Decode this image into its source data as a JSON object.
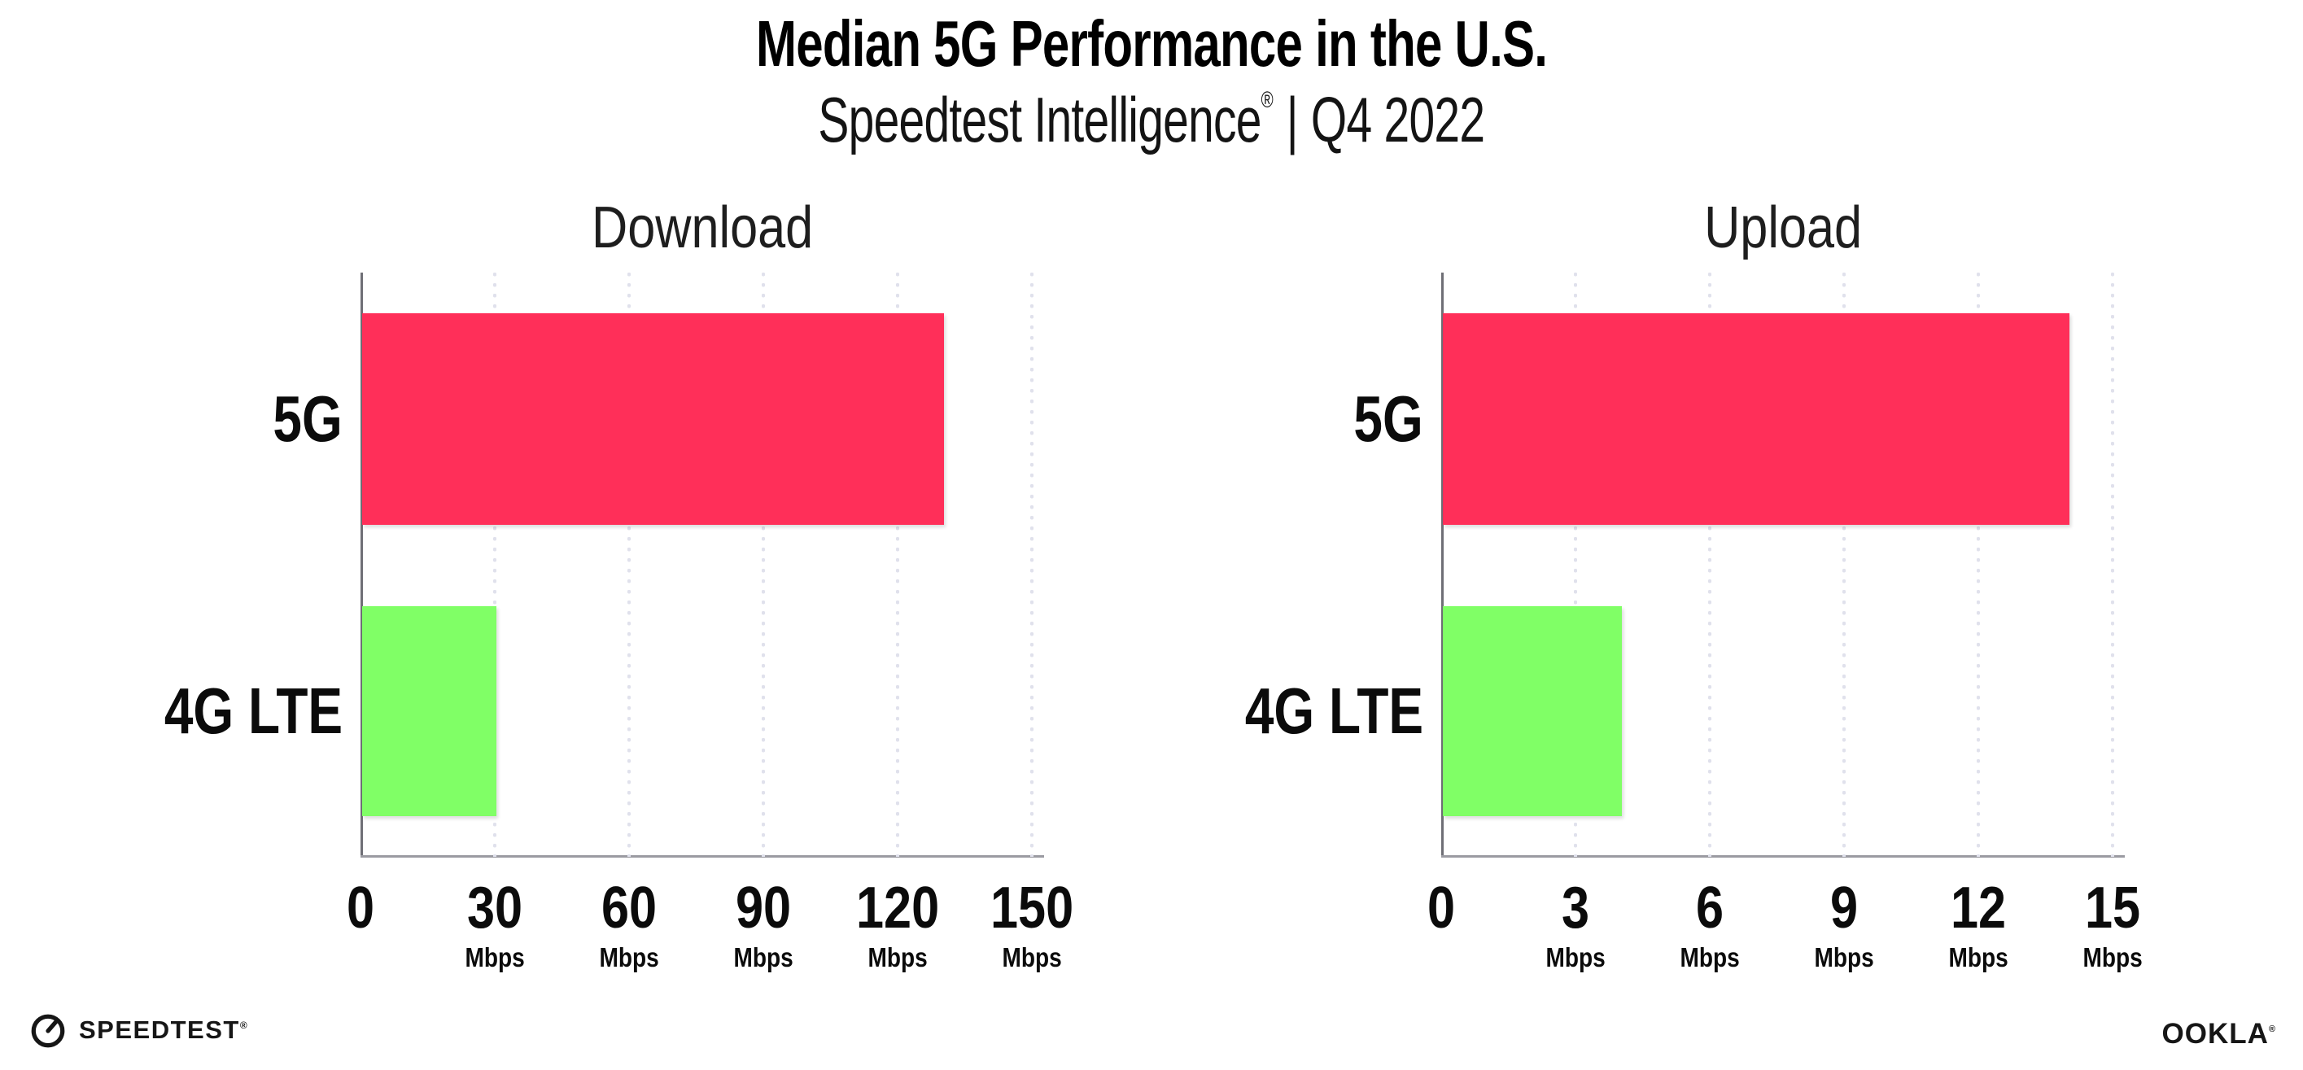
{
  "header": {
    "title": "Median 5G Performance in the U.S.",
    "subtitle_brand": "Speedtest Intelligence",
    "subtitle_registered_mark": "®",
    "subtitle_separator": "|",
    "subtitle_period": "Q4 2022"
  },
  "colors": {
    "bar_5g_pink": "#ff2f59",
    "bar_4g_green": "#80ff66",
    "axis_gray": "#9b9ba2",
    "grid_dot_gray": "#e0e1ec",
    "text_black": "#0b0b0b"
  },
  "chart_data": [
    {
      "type": "bar",
      "orientation": "horizontal",
      "title": "Download",
      "categories": [
        "5G",
        "4G LTE"
      ],
      "values": [
        130,
        30
      ],
      "value_unit": "Mbps",
      "xlim": [
        0,
        150
      ],
      "ticks": [
        0,
        30,
        60,
        90,
        120,
        150
      ],
      "tick_unit": "Mbps",
      "bar_colors": [
        "#ff2f59",
        "#80ff66"
      ],
      "grid": "dotted-vertical",
      "legend": "none"
    },
    {
      "type": "bar",
      "orientation": "horizontal",
      "title": "Upload",
      "categories": [
        "5G",
        "4G LTE"
      ],
      "values": [
        14,
        4
      ],
      "value_unit": "Mbps",
      "xlim": [
        0,
        15
      ],
      "ticks": [
        0,
        3,
        6,
        9,
        12,
        15
      ],
      "tick_unit": "Mbps",
      "bar_colors": [
        "#ff2f59",
        "#80ff66"
      ],
      "grid": "dotted-vertical",
      "legend": "none"
    }
  ],
  "footer": {
    "speedtest_icon": "speedtest-gauge-icon",
    "speedtest_wordmark": "SPEEDTEST",
    "speedtest_mark": "®",
    "ookla_wordmark": "OOKLA",
    "ookla_mark": "®"
  }
}
